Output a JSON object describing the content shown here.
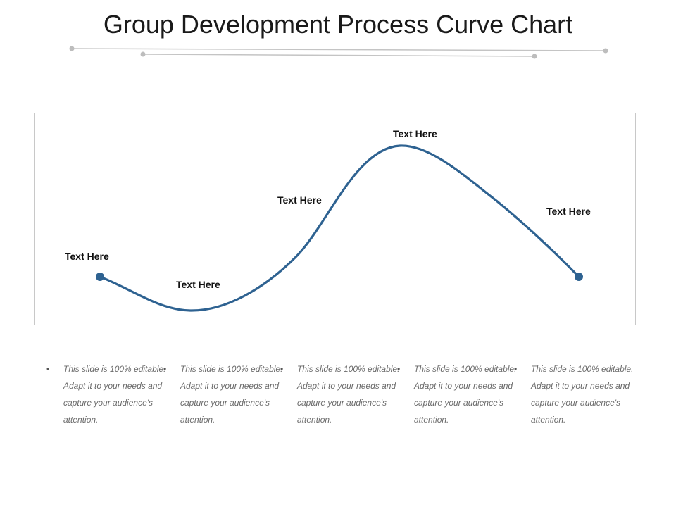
{
  "title": "Group Development Process Curve Chart",
  "colors": {
    "curve": "#2e6291",
    "decor_line": "#bdbdbd",
    "frame": "#c8c8c8",
    "body_text": "#6b6b6b"
  },
  "curve_labels": [
    "Text Here",
    "Text Here",
    "Text Here",
    "Text Here",
    "Text Here"
  ],
  "notes": [
    {
      "bullet": "•",
      "text": "This slide is 100% editable. Adapt it to your needs and capture your audience's attention."
    },
    {
      "bullet": "•",
      "text": "This slide is 100% editable. Adapt it to your needs and capture your audience's attention."
    },
    {
      "bullet": "•",
      "text": "This slide is 100% editable. Adapt it to your needs and capture your audience's attention."
    },
    {
      "bullet": "•",
      "text": "This slide is 100% editable. Adapt it to your needs and capture your audience's attention."
    },
    {
      "bullet": "•",
      "text": "This slide is 100% editable. Adapt it to your needs and capture your audience's attention."
    }
  ]
}
